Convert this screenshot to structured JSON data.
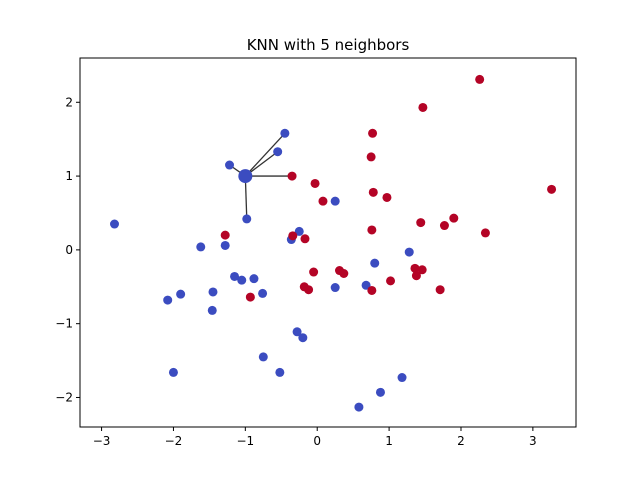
{
  "chart_data": {
    "type": "scatter",
    "title": "KNN with 5 neighbors",
    "xlabel": "",
    "ylabel": "",
    "xlim": [
      -3.3,
      3.6
    ],
    "ylim": [
      -2.4,
      2.6
    ],
    "xticks": [
      -3,
      -2,
      -1,
      0,
      1,
      2,
      3
    ],
    "yticks": [
      -2,
      -1,
      0,
      1,
      2
    ],
    "xtick_labels": [
      "−3",
      "−2",
      "−1",
      "0",
      "1",
      "2",
      "3"
    ],
    "ytick_labels": [
      "−2",
      "−1",
      "0",
      "1",
      "2"
    ],
    "grid": false,
    "legend": "none",
    "colors": {
      "class_0": "#3b4cc0",
      "class_1": "#b40426",
      "neighbor_line": "#333333"
    },
    "query_point": {
      "x": -1.0,
      "y": 1.0,
      "class": 0
    },
    "neighbors": [
      {
        "x": -0.45,
        "y": 1.58
      },
      {
        "x": -0.55,
        "y": 1.33
      },
      {
        "x": -1.22,
        "y": 1.15
      },
      {
        "x": -0.35,
        "y": 1.0
      },
      {
        "x": -0.98,
        "y": 0.42
      }
    ],
    "series": [
      {
        "class": 0,
        "points": [
          [
            -2.82,
            0.35
          ],
          [
            -1.22,
            1.15
          ],
          [
            -0.45,
            1.58
          ],
          [
            -0.55,
            1.33
          ],
          [
            -0.98,
            0.42
          ],
          [
            -1.62,
            0.04
          ],
          [
            -1.28,
            0.06
          ],
          [
            -0.25,
            0.25
          ],
          [
            -0.36,
            0.14
          ],
          [
            0.25,
            0.66
          ],
          [
            -1.15,
            -0.36
          ],
          [
            -1.05,
            -0.41
          ],
          [
            -0.88,
            -0.39
          ],
          [
            -0.76,
            -0.59
          ],
          [
            -1.45,
            -0.57
          ],
          [
            -1.9,
            -0.6
          ],
          [
            -2.08,
            -0.68
          ],
          [
            -1.46,
            -0.82
          ],
          [
            -2.0,
            -1.66
          ],
          [
            -0.28,
            -1.11
          ],
          [
            -0.2,
            -1.19
          ],
          [
            -0.75,
            -1.45
          ],
          [
            -0.52,
            -1.66
          ],
          [
            0.25,
            -0.51
          ],
          [
            0.68,
            -0.48
          ],
          [
            0.8,
            -0.18
          ],
          [
            1.28,
            -0.03
          ],
          [
            0.58,
            -2.13
          ],
          [
            0.88,
            -1.93
          ],
          [
            1.18,
            -1.73
          ]
        ]
      },
      {
        "class": 1,
        "points": [
          [
            2.26,
            2.31
          ],
          [
            1.47,
            1.93
          ],
          [
            0.77,
            1.58
          ],
          [
            0.75,
            1.26
          ],
          [
            -0.35,
            1.0
          ],
          [
            -0.03,
            0.9
          ],
          [
            0.78,
            0.78
          ],
          [
            0.97,
            0.71
          ],
          [
            0.08,
            0.66
          ],
          [
            3.26,
            0.82
          ],
          [
            1.44,
            0.37
          ],
          [
            1.9,
            0.43
          ],
          [
            1.77,
            0.33
          ],
          [
            2.34,
            0.23
          ],
          [
            0.76,
            0.27
          ],
          [
            -1.28,
            0.2
          ],
          [
            -0.34,
            0.19
          ],
          [
            -0.17,
            0.15
          ],
          [
            -0.05,
            -0.3
          ],
          [
            0.31,
            -0.28
          ],
          [
            0.37,
            -0.32
          ],
          [
            1.36,
            -0.25
          ],
          [
            1.46,
            -0.27
          ],
          [
            1.38,
            -0.35
          ],
          [
            1.02,
            -0.42
          ],
          [
            -0.18,
            -0.5
          ],
          [
            -0.12,
            -0.54
          ],
          [
            0.76,
            -0.55
          ],
          [
            1.71,
            -0.54
          ],
          [
            -0.93,
            -0.64
          ]
        ]
      }
    ]
  }
}
